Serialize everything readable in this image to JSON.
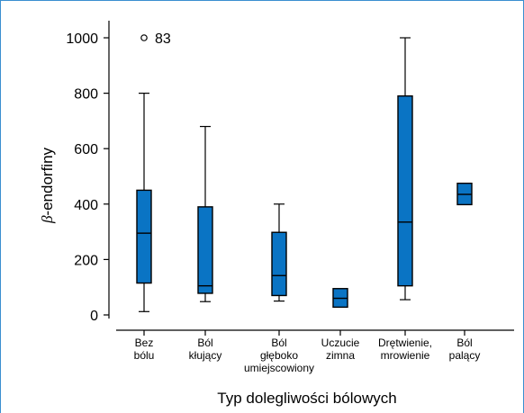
{
  "chart_data": {
    "type": "boxplot",
    "xlabel": "Typ dolegliwości bólowych",
    "ylabel_symbol": "β",
    "ylabel_rest": "-endorfiny",
    "ylim": [
      0,
      1000
    ],
    "yticks": [
      0,
      200,
      400,
      600,
      800,
      1000
    ],
    "box_color": "#0a74c4",
    "categories": [
      {
        "label_lines": [
          "Bez",
          "bólu"
        ],
        "min": 12,
        "q1": 115,
        "median": 295,
        "q3": 450,
        "max": 800,
        "outliers": [
          {
            "value": 1000,
            "label": "83"
          }
        ]
      },
      {
        "label_lines": [
          "Ból",
          "kłujący"
        ],
        "min": 48,
        "q1": 78,
        "median": 105,
        "q3": 390,
        "max": 680,
        "outliers": []
      },
      {
        "label_lines": [
          "Ból",
          "głęboko",
          "umiejscowiony"
        ],
        "min": 50,
        "q1": 70,
        "median": 142,
        "q3": 298,
        "max": 400,
        "outliers": []
      },
      {
        "label_lines": [
          "Uczucie",
          "zimna"
        ],
        "min": 28,
        "q1": 28,
        "median": 60,
        "q3": 95,
        "max": 95,
        "outliers": []
      },
      {
        "label_lines": [
          "Drętwienie,",
          "mrowienie"
        ],
        "min": 55,
        "q1": 105,
        "median": 335,
        "q3": 790,
        "max": 1000,
        "outliers": []
      },
      {
        "label_lines": [
          "Ból",
          "palący"
        ],
        "min": 398,
        "q1": 398,
        "median": 435,
        "q3": 475,
        "max": 475,
        "outliers": []
      }
    ]
  }
}
